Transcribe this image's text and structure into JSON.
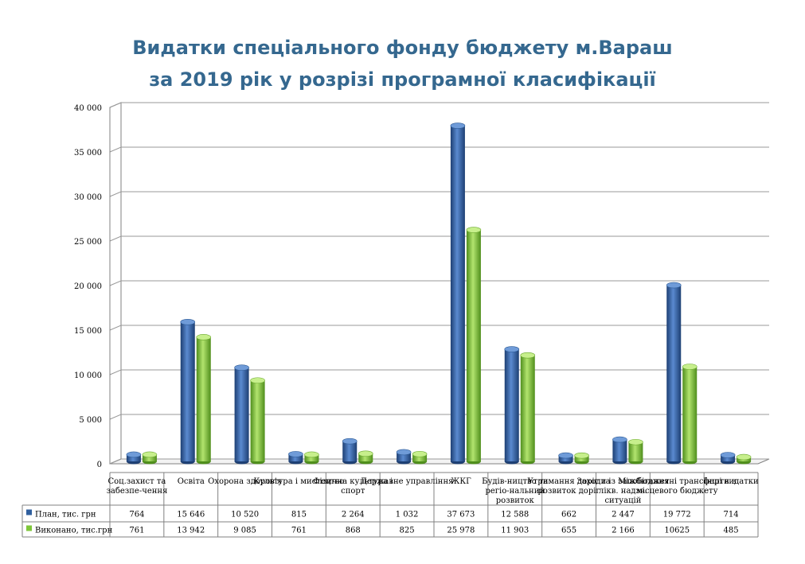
{
  "title_line1": "Видатки спеціального фонду бюджету м.Вараш",
  "title_line2": "за 2019 рік у розрізі програмної класифікації",
  "chart_data": {
    "type": "bar",
    "title": "Видатки спеціального фонду бюджету м.Вараш за 2019 рік у розрізі програмної класифікації",
    "xlabel": "",
    "ylabel": "",
    "ylim": [
      0,
      40000
    ],
    "yticks": [
      0,
      5000,
      10000,
      15000,
      20000,
      25000,
      30000,
      35000,
      40000
    ],
    "ytick_labels": [
      "0",
      "5 000",
      "10 000",
      "15 000",
      "20 000",
      "25 000",
      "30 000",
      "35 000",
      "40 000"
    ],
    "grid": true,
    "legend": "data-table-left",
    "categories": [
      [
        "Соц.захист та",
        "забезпе-чення"
      ],
      [
        "Освіта"
      ],
      [
        "Охорона здоров'я"
      ],
      [
        "Культура і мистецтво"
      ],
      [
        "Фізична культура і",
        "спорт"
      ],
      [
        "Державне управління"
      ],
      [
        "ЖКГ"
      ],
      [
        "Будів-ництво та",
        "регіо-нальний",
        "розвиток"
      ],
      [
        "Утримання доріг та",
        "розвиток доріг"
      ],
      [
        "Заходи із запобігання",
        "лікв. надзв.",
        "ситуацій"
      ],
      [
        "Міжбюджетні трансферти з",
        "місцевого бюджету"
      ],
      [
        "Інші видатки"
      ]
    ],
    "series": [
      {
        "name": "План, тис. грн",
        "color": "#2f5f9e",
        "values": [
          764,
          15646,
          10520,
          815,
          2264,
          1032,
          37673,
          12588,
          662,
          2447,
          19772,
          714
        ],
        "labels": [
          "764",
          "15 646",
          "10 520",
          "815",
          "2 264",
          "1 032",
          "37 673",
          "12 588",
          "662",
          "2 447",
          "19 772",
          "714"
        ]
      },
      {
        "name": "Виконано, тис.грн",
        "color": "#7ec63a",
        "values": [
          761,
          13942,
          9085,
          761,
          868,
          825,
          25978,
          11903,
          655,
          2166,
          10625,
          485
        ],
        "labels": [
          "761",
          "13 942",
          "9 085",
          "761",
          "868",
          "825",
          "25 978",
          "11 903",
          "655",
          "2 166",
          "10625",
          "485"
        ]
      }
    ]
  }
}
